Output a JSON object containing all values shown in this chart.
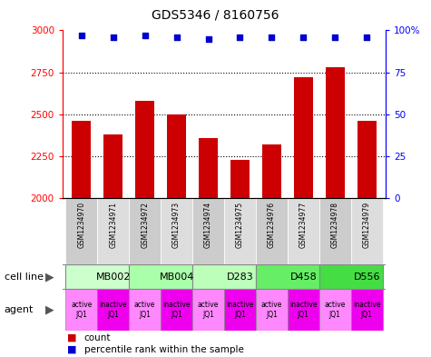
{
  "title": "GDS5346 / 8160756",
  "samples": [
    "GSM1234970",
    "GSM1234971",
    "GSM1234972",
    "GSM1234973",
    "GSM1234974",
    "GSM1234975",
    "GSM1234976",
    "GSM1234977",
    "GSM1234978",
    "GSM1234979"
  ],
  "counts": [
    2460,
    2380,
    2580,
    2500,
    2360,
    2230,
    2320,
    2720,
    2780,
    2460
  ],
  "percentile_ranks": [
    97,
    96,
    97,
    96,
    95,
    96,
    96,
    96,
    96,
    96
  ],
  "ylim_left": [
    2000,
    3000
  ],
  "ylim_right": [
    0,
    100
  ],
  "yticks_left": [
    2000,
    2250,
    2500,
    2750,
    3000
  ],
  "yticks_right": [
    0,
    25,
    50,
    75,
    100
  ],
  "cell_lines": [
    {
      "name": "MB002",
      "span": [
        0,
        2
      ],
      "color": "#ccffcc"
    },
    {
      "name": "MB004",
      "span": [
        2,
        4
      ],
      "color": "#aaffaa"
    },
    {
      "name": "D283",
      "span": [
        4,
        6
      ],
      "color": "#bbffbb"
    },
    {
      "name": "D458",
      "span": [
        6,
        8
      ],
      "color": "#66ee66"
    },
    {
      "name": "D556",
      "span": [
        8,
        10
      ],
      "color": "#44dd44"
    }
  ],
  "agents": [
    "active\nJQ1",
    "inactive\nJQ1",
    "active\nJQ1",
    "inactive\nJQ1",
    "active\nJQ1",
    "inactive\nJQ1",
    "active\nJQ1",
    "inactive\nJQ1",
    "active\nJQ1",
    "inactive\nJQ1"
  ],
  "agent_active_color": "#ff88ff",
  "agent_inactive_color": "#ee00ee",
  "bar_color": "#cc0000",
  "percentile_color": "#0000cc",
  "bar_width": 0.6,
  "legend_red": "count",
  "legend_blue": "percentile rank within the sample",
  "label_cell_line": "cell line",
  "label_agent": "agent",
  "gsm_bg_odd": "#cccccc",
  "gsm_bg_even": "#dddddd"
}
